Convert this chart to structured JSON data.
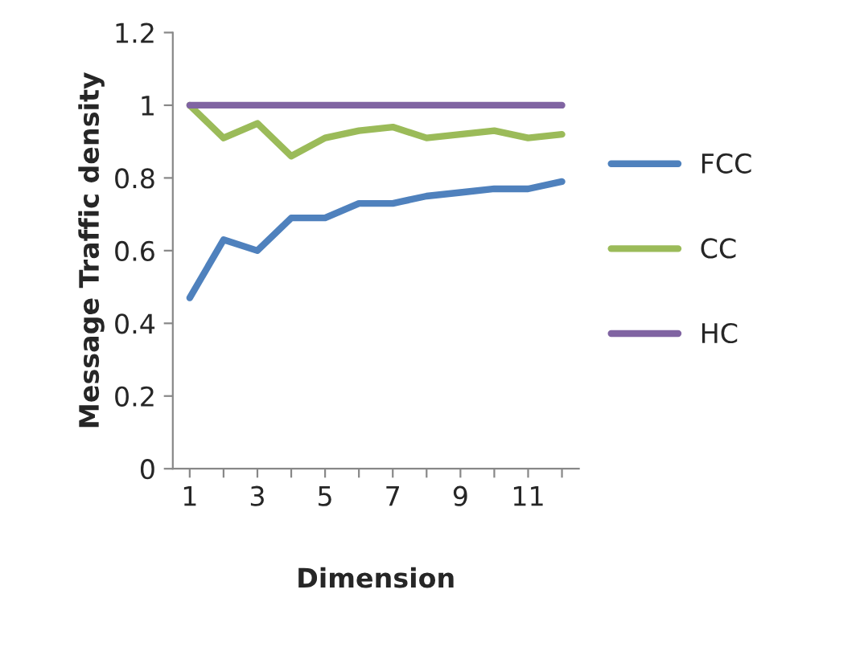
{
  "chart_data": {
    "type": "line",
    "xlabel": "Dimension",
    "ylabel": "Message Traffic density",
    "categories": [
      "1",
      null,
      "3",
      null,
      "5",
      null,
      "7",
      null,
      "9",
      null,
      "11",
      null
    ],
    "series": [
      {
        "name": "FCC",
        "color": "#4f81bd",
        "values": [
          0.47,
          0.63,
          0.6,
          0.69,
          0.69,
          0.73,
          0.73,
          0.75,
          0.76,
          0.77,
          0.77,
          0.79
        ]
      },
      {
        "name": "CC",
        "color": "#9bbb59",
        "values": [
          1,
          0.91,
          0.95,
          0.86,
          0.91,
          0.93,
          0.94,
          0.91,
          0.92,
          0.93,
          0.91,
          0.92
        ]
      },
      {
        "name": "HC",
        "color": "#8064a2",
        "values": [
          1,
          1,
          1,
          1,
          1,
          1,
          1,
          1,
          1,
          1,
          1,
          1
        ]
      }
    ],
    "ylim": [
      0,
      1.2
    ],
    "yticks": [
      0,
      {
        "value": 0.2,
        "label": "0.2"
      },
      {
        "value": 0.4,
        "label": "0.4"
      },
      {
        "value": 0.6,
        "label": "0.6"
      },
      {
        "value": 0.8,
        "label": "0.8"
      },
      1,
      {
        "value": 1.2,
        "label": "1.2"
      }
    ],
    "grid": false,
    "legend": "right",
    "marker": "none",
    "line_style": "solid"
  }
}
